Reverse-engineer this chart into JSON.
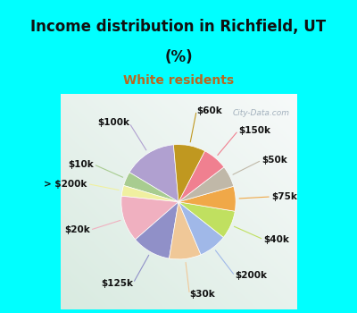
{
  "title_line1": "Income distribution in Richfield, UT",
  "title_line2": "(%)",
  "subtitle": "White residents",
  "title_color": "#111111",
  "subtitle_color": "#b86820",
  "bg_cyan": "#00ffff",
  "bg_chart_color": "#d8efe0",
  "labels": [
    "$100k",
    "$10k",
    "> $200k",
    "$20k",
    "$125k",
    "$30k",
    "$200k",
    "$40k",
    "$75k",
    "$50k",
    "$150k",
    "$60k"
  ],
  "values": [
    15,
    4,
    3,
    13,
    11,
    9,
    8,
    8,
    7,
    6,
    7,
    9
  ],
  "colors": [
    "#b0a0d0",
    "#a8cc90",
    "#f0f0a0",
    "#f0b0c0",
    "#9090c8",
    "#f0c898",
    "#a0b8e8",
    "#c0e060",
    "#f0a848",
    "#c0b8a8",
    "#f08090",
    "#c09820"
  ],
  "start_angle": 95,
  "label_fontsize": 7.5,
  "title_fontsize": 12,
  "subtitle_fontsize": 10
}
